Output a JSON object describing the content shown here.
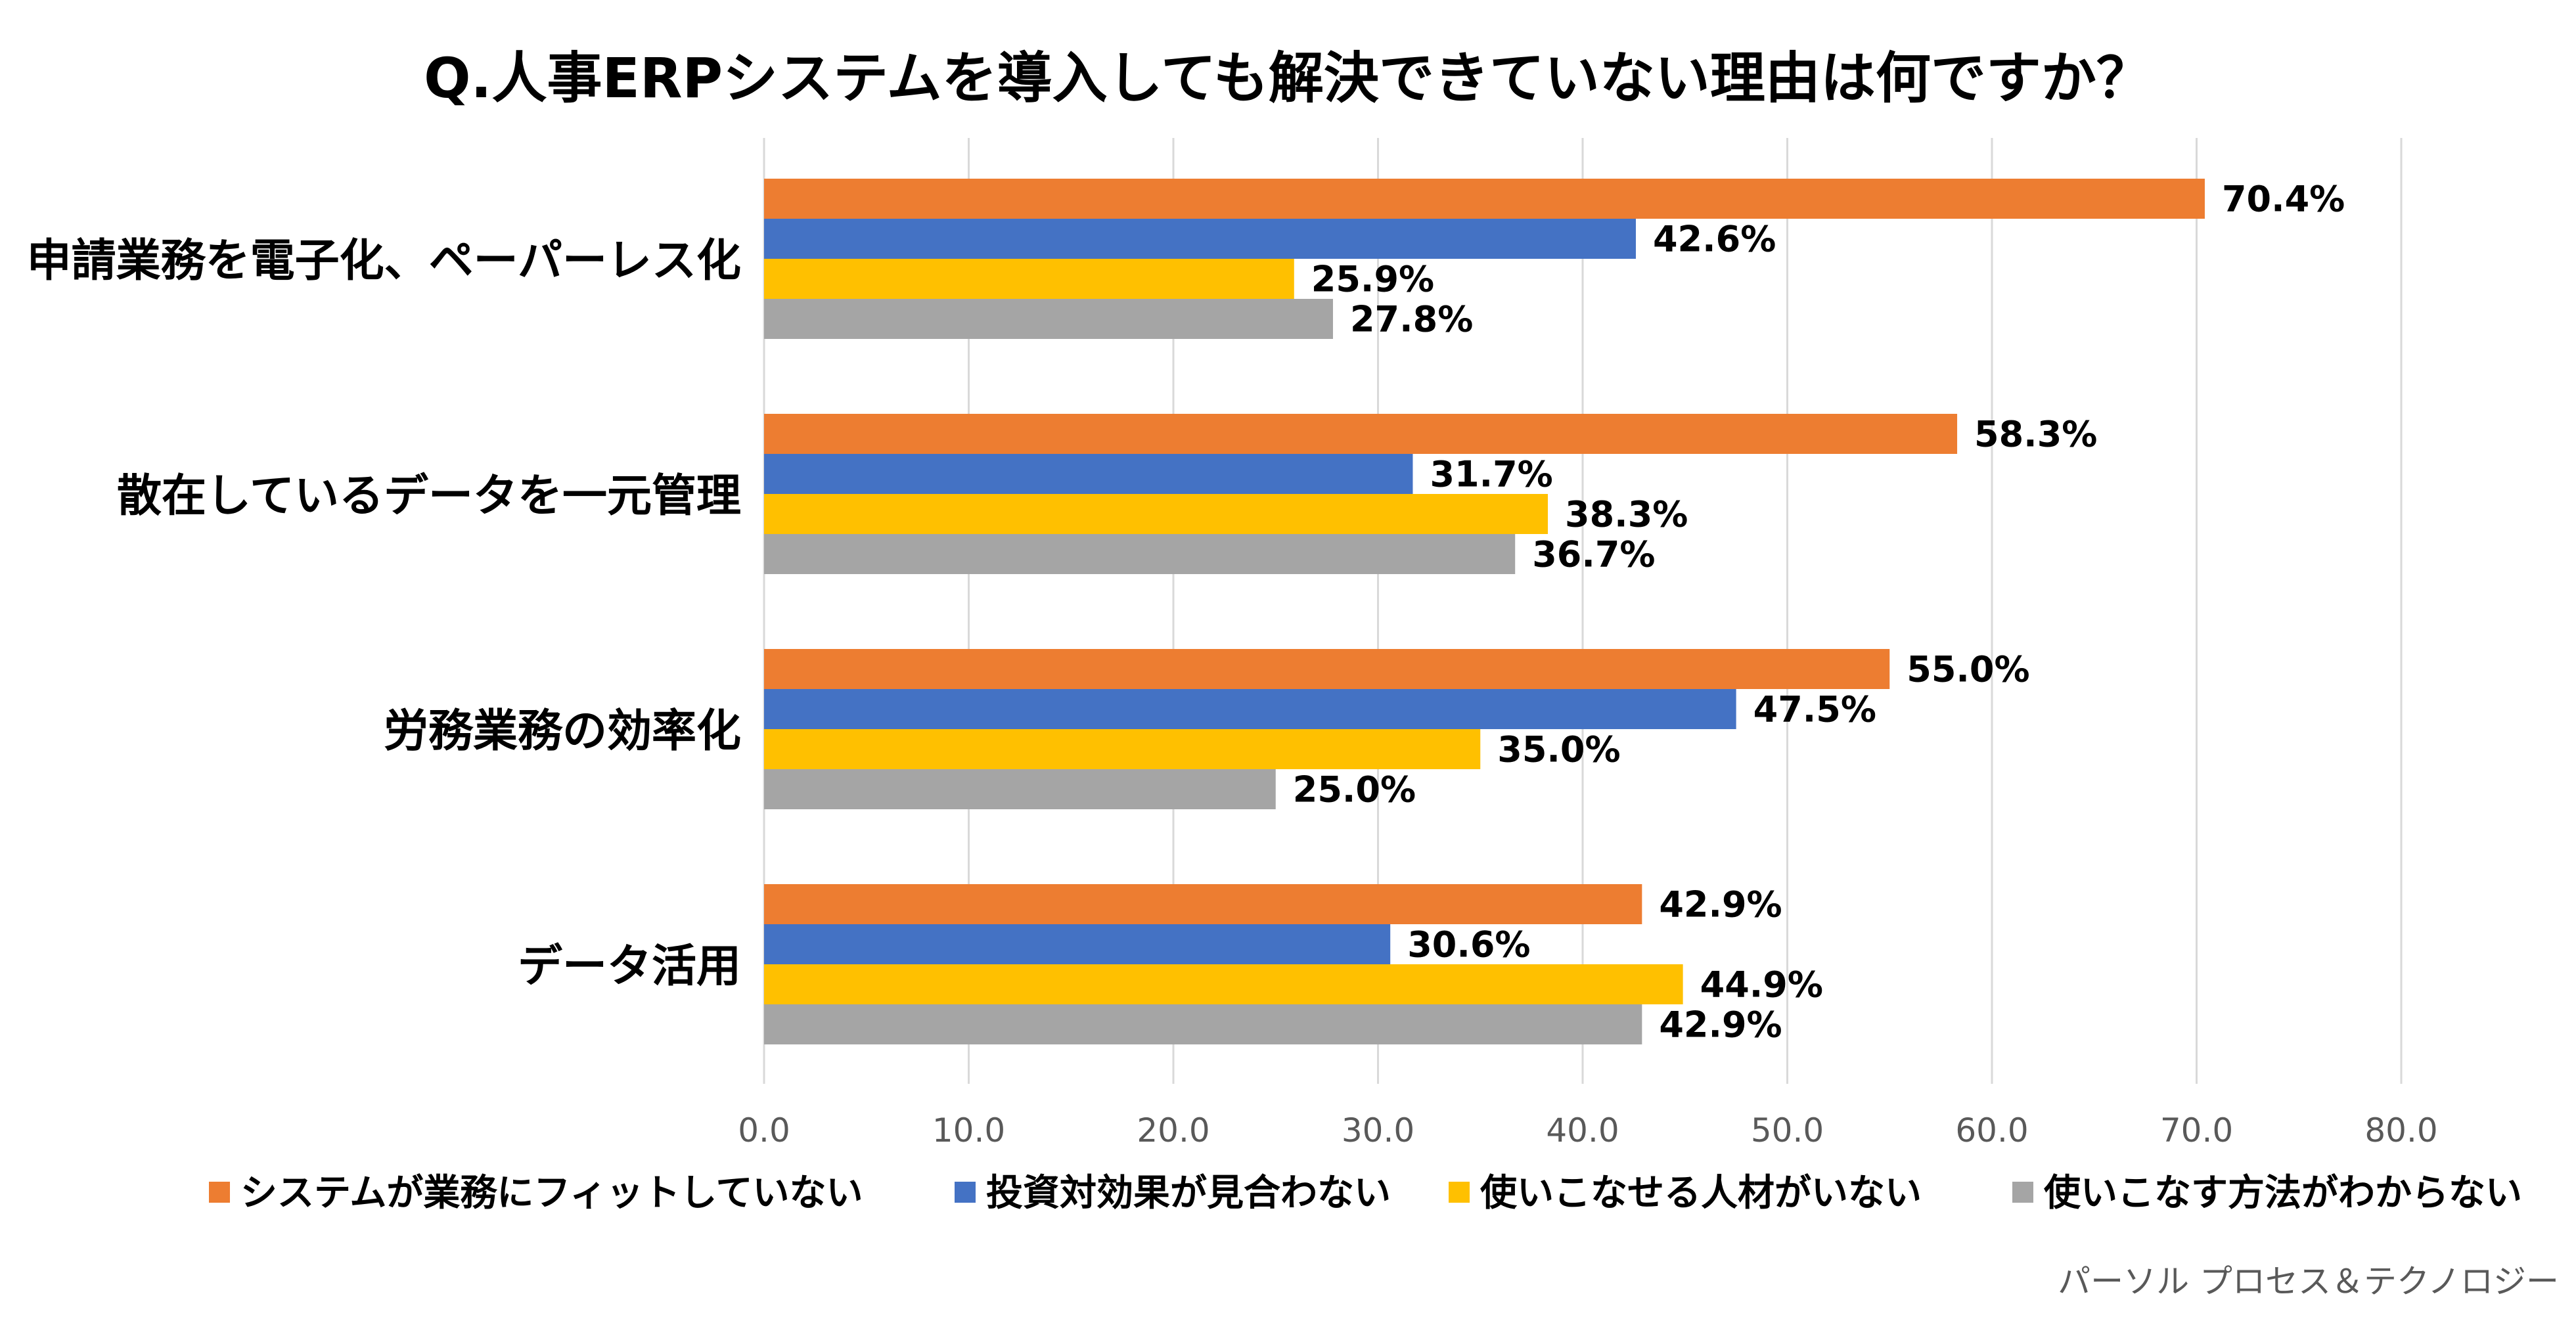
{
  "chart_data": {
    "type": "bar",
    "orientation": "horizontal",
    "title": "Q.人事ERPシステムを導入しても解決できていない理由は何ですか？",
    "categories": [
      "申請業務を電子化、ペーパーレス化",
      "散在しているデータを一元管理",
      "労務業務の効率化",
      "データ活用"
    ],
    "series": [
      {
        "name": "システムが業務にフィットしていない",
        "color": "#ED7D31",
        "values": [
          70.4,
          58.3,
          55.0,
          42.9
        ]
      },
      {
        "name": "投資対効果が見合わない",
        "color": "#4472C4",
        "values": [
          42.6,
          31.7,
          47.5,
          30.6
        ]
      },
      {
        "name": "使いこなせる人材がいない",
        "color": "#FFC000",
        "values": [
          25.9,
          38.3,
          35.0,
          44.9
        ]
      },
      {
        "name": "使いこなす方法がわからない",
        "color": "#A5A5A5",
        "values": [
          27.8,
          36.7,
          25.0,
          42.9
        ]
      }
    ],
    "data_labels": [
      [
        "70.4%",
        "42.6%",
        "25.9%",
        "27.8%"
      ],
      [
        "58.3%",
        "31.7%",
        "38.3%",
        "36.7%"
      ],
      [
        "55.0%",
        "47.5%",
        "35.0%",
        "25.0%"
      ],
      [
        "42.9%",
        "30.6%",
        "44.9%",
        "42.9%"
      ]
    ],
    "xlim": [
      0,
      80
    ],
    "xticks": [
      "0.0",
      "10.0",
      "20.0",
      "30.0",
      "40.0",
      "50.0",
      "60.0",
      "70.0",
      "80.0"
    ],
    "xlabel": "",
    "ylabel": "",
    "grid": "vertical",
    "legend": "bottom"
  },
  "source_credit": "パーソル プロセス＆テクノロジー"
}
